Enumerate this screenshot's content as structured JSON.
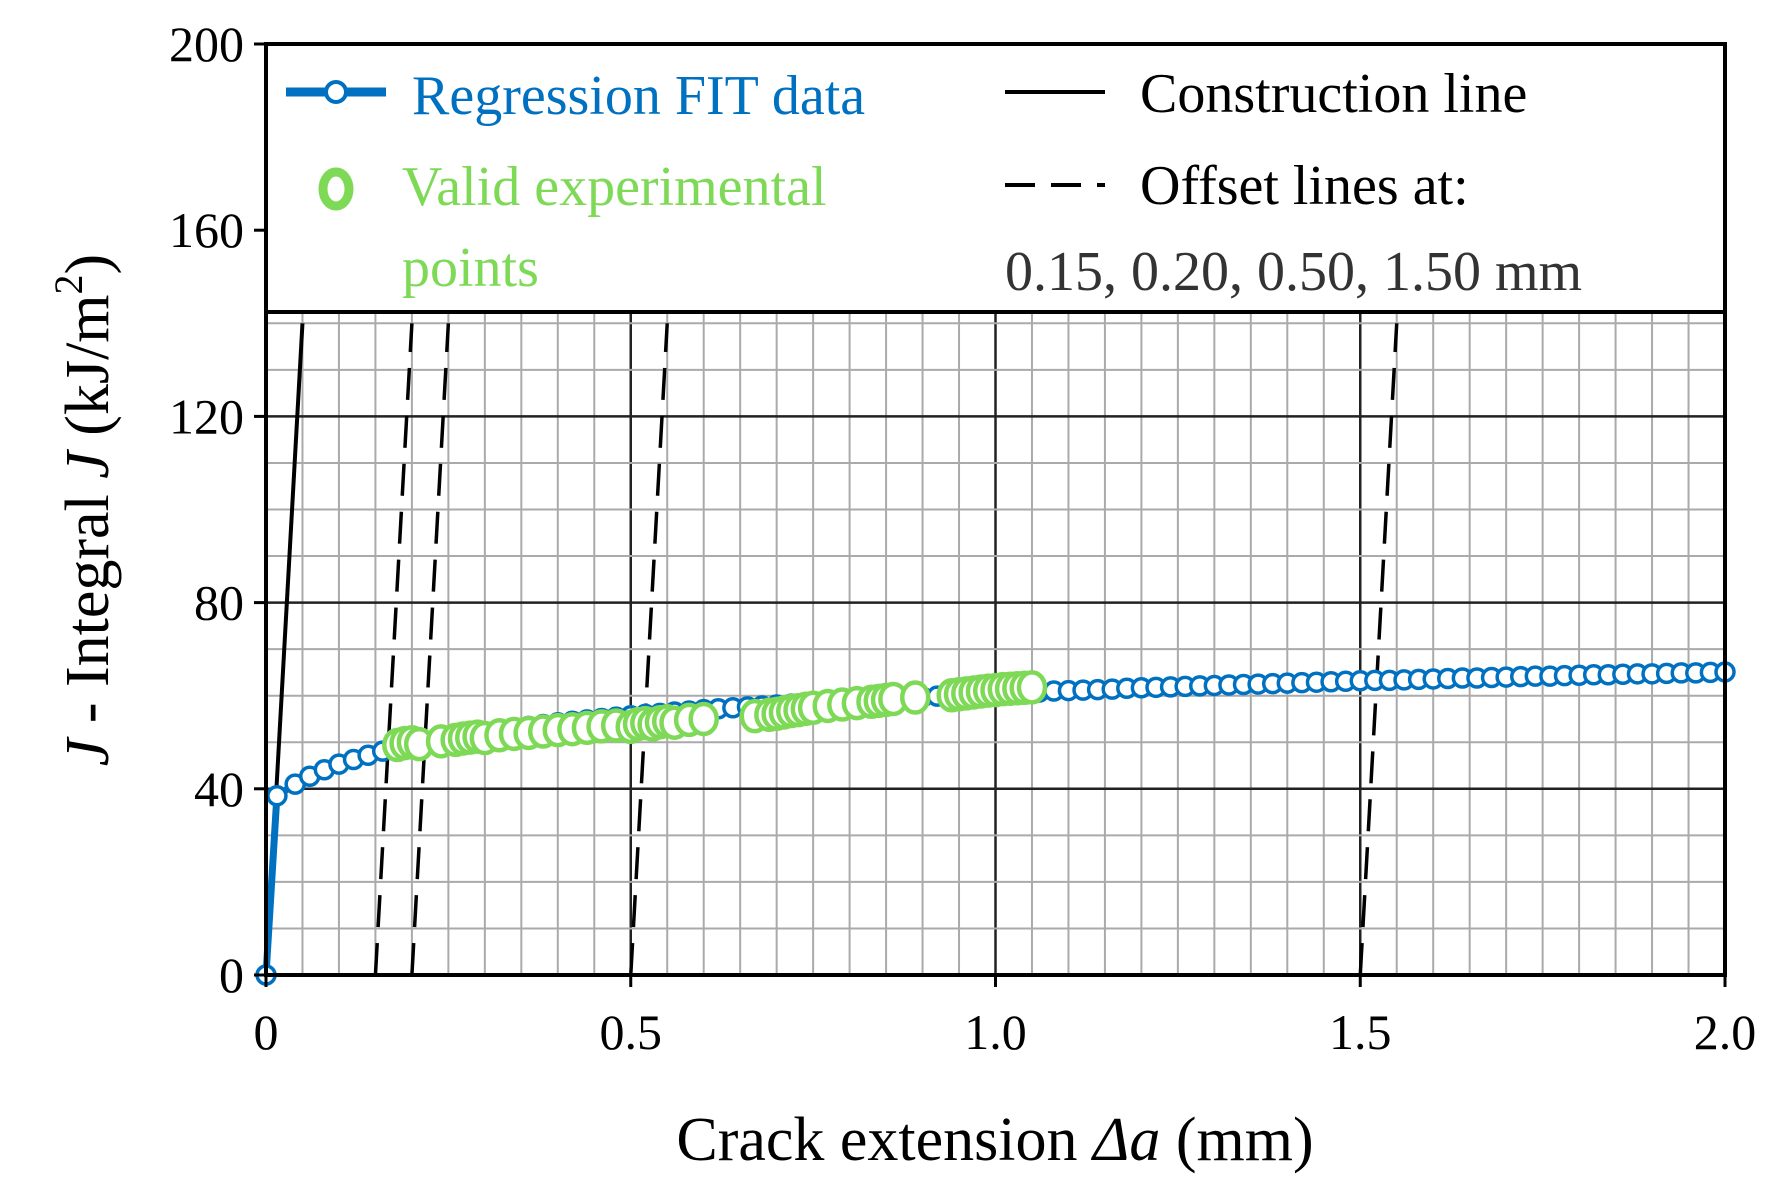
{
  "chart_data": {
    "type": "line",
    "title": "",
    "xlabel": "Crack extension Δa (mm)",
    "xlabel_parts": {
      "pre": "Crack extension ",
      "italic": "Δa",
      "post": " (mm)"
    },
    "ylabel": "J - Integral J (kJ/m2)",
    "ylabel_parts": {
      "j1": "J",
      "mid": " - Integral ",
      "j2": "J",
      "unit": " (kJ/m",
      "sup": "2",
      "close": ")"
    },
    "xlim": [
      0,
      2.0
    ],
    "ylim": [
      0,
      200
    ],
    "x_ticks": [
      0,
      0.5,
      1.0,
      1.5,
      2.0
    ],
    "x_tick_labels": [
      "0",
      "0.5",
      "1.0",
      "1.5",
      "2.0"
    ],
    "y_ticks": [
      0,
      40,
      80,
      120,
      160,
      200
    ],
    "y_tick_labels": [
      "0",
      "40",
      "80",
      "120",
      "160",
      "200"
    ],
    "grid": true,
    "colors": {
      "fit": "#0070C0",
      "experimental": "#7ED957",
      "lines": "#000000",
      "grid_major": "#222222",
      "grid_minor": "#AAAAAA"
    },
    "legend": {
      "position": "top",
      "fit_label": "Regression FIT data",
      "experimental_label_line1": "Valid experimental",
      "experimental_label_line2": "points",
      "construction_label": "Construction line",
      "offset_label": "Offset lines at:",
      "offset_values": "0.15, 0.20, 0.50, 1.50 mm"
    },
    "construction_line": {
      "slope": 2800,
      "intercept": 0
    },
    "offset_lines": [
      0.15,
      0.2,
      0.5,
      1.5
    ],
    "fit_series": {
      "name": "Regression FIT data",
      "x": [
        0.0,
        0.015,
        0.04,
        0.06,
        0.08,
        0.1,
        0.12,
        0.14,
        0.16,
        0.18,
        0.2,
        0.22,
        0.24,
        0.26,
        0.28,
        0.3,
        0.32,
        0.34,
        0.36,
        0.38,
        0.4,
        0.42,
        0.44,
        0.46,
        0.48,
        0.5,
        0.52,
        0.54,
        0.56,
        0.58,
        0.6,
        0.62,
        0.64,
        0.66,
        0.68,
        0.7,
        0.72,
        0.74,
        0.76,
        0.78,
        0.8,
        0.82,
        0.84,
        0.86,
        0.88,
        0.9,
        0.92,
        0.94,
        0.96,
        0.98,
        1.0,
        1.02,
        1.04,
        1.06,
        1.08,
        1.1,
        1.12,
        1.14,
        1.16,
        1.18,
        1.2,
        1.22,
        1.24,
        1.26,
        1.28,
        1.3,
        1.32,
        1.34,
        1.36,
        1.38,
        1.4,
        1.42,
        1.44,
        1.46,
        1.48,
        1.5,
        1.52,
        1.54,
        1.56,
        1.58,
        1.6,
        1.62,
        1.64,
        1.66,
        1.68,
        1.7,
        1.72,
        1.74,
        1.76,
        1.78,
        1.8,
        1.82,
        1.84,
        1.86,
        1.88,
        1.9,
        1.92,
        1.94,
        1.96,
        1.98,
        2.0
      ],
      "y": [
        0.0,
        38.5,
        41.0,
        42.7,
        44.1,
        45.3,
        46.3,
        47.2,
        48.1,
        48.8,
        49.5,
        50.1,
        50.7,
        51.2,
        51.7,
        52.2,
        52.6,
        53.0,
        53.4,
        53.8,
        54.2,
        54.5,
        54.8,
        55.1,
        55.4,
        55.7,
        56.0,
        56.2,
        56.5,
        56.7,
        57.0,
        57.2,
        57.4,
        57.6,
        57.8,
        58.0,
        58.2,
        58.4,
        58.6,
        58.8,
        58.9,
        59.1,
        59.3,
        59.4,
        59.6,
        59.7,
        59.9,
        60.0,
        60.2,
        60.3,
        60.4,
        60.6,
        60.7,
        60.8,
        61.0,
        61.1,
        61.2,
        61.3,
        61.4,
        61.6,
        61.7,
        61.8,
        61.9,
        62.0,
        62.1,
        62.2,
        62.3,
        62.4,
        62.5,
        62.6,
        62.7,
        62.8,
        62.9,
        63.0,
        63.1,
        63.2,
        63.3,
        63.3,
        63.4,
        63.5,
        63.6,
        63.7,
        63.8,
        63.8,
        63.9,
        64.0,
        64.1,
        64.2,
        64.2,
        64.3,
        64.4,
        64.5,
        64.5,
        64.6,
        64.7,
        64.7,
        64.8,
        64.9,
        64.9,
        65.0,
        65.1
      ]
    },
    "experimental_series": {
      "name": "Valid experimental points",
      "x": [
        0.18,
        0.19,
        0.2,
        0.21,
        0.24,
        0.26,
        0.27,
        0.28,
        0.29,
        0.3,
        0.32,
        0.34,
        0.36,
        0.38,
        0.4,
        0.42,
        0.44,
        0.46,
        0.48,
        0.5,
        0.51,
        0.52,
        0.53,
        0.54,
        0.55,
        0.56,
        0.58,
        0.6,
        0.67,
        0.69,
        0.7,
        0.71,
        0.72,
        0.73,
        0.74,
        0.75,
        0.77,
        0.79,
        0.81,
        0.83,
        0.84,
        0.85,
        0.86,
        0.89,
        0.94,
        0.95,
        0.96,
        0.97,
        0.98,
        0.99,
        1.0,
        1.01,
        1.02,
        1.03,
        1.04,
        1.05
      ],
      "y": [
        49.4,
        49.8,
        50.0,
        49.6,
        50.2,
        50.5,
        50.8,
        51.0,
        51.2,
        50.9,
        51.5,
        51.8,
        52.0,
        52.3,
        52.6,
        52.8,
        53.1,
        53.4,
        53.6,
        53.3,
        53.9,
        54.1,
        53.8,
        54.3,
        54.5,
        54.2,
        54.8,
        55.0,
        55.6,
        55.9,
        56.1,
        56.4,
        56.7,
        56.9,
        57.2,
        57.4,
        57.8,
        58.1,
        58.4,
        58.7,
        58.9,
        59.1,
        59.3,
        59.6,
        60.1,
        60.3,
        60.5,
        60.7,
        60.9,
        61.1,
        61.2,
        61.4,
        61.5,
        61.6,
        61.7,
        61.8
      ]
    }
  }
}
